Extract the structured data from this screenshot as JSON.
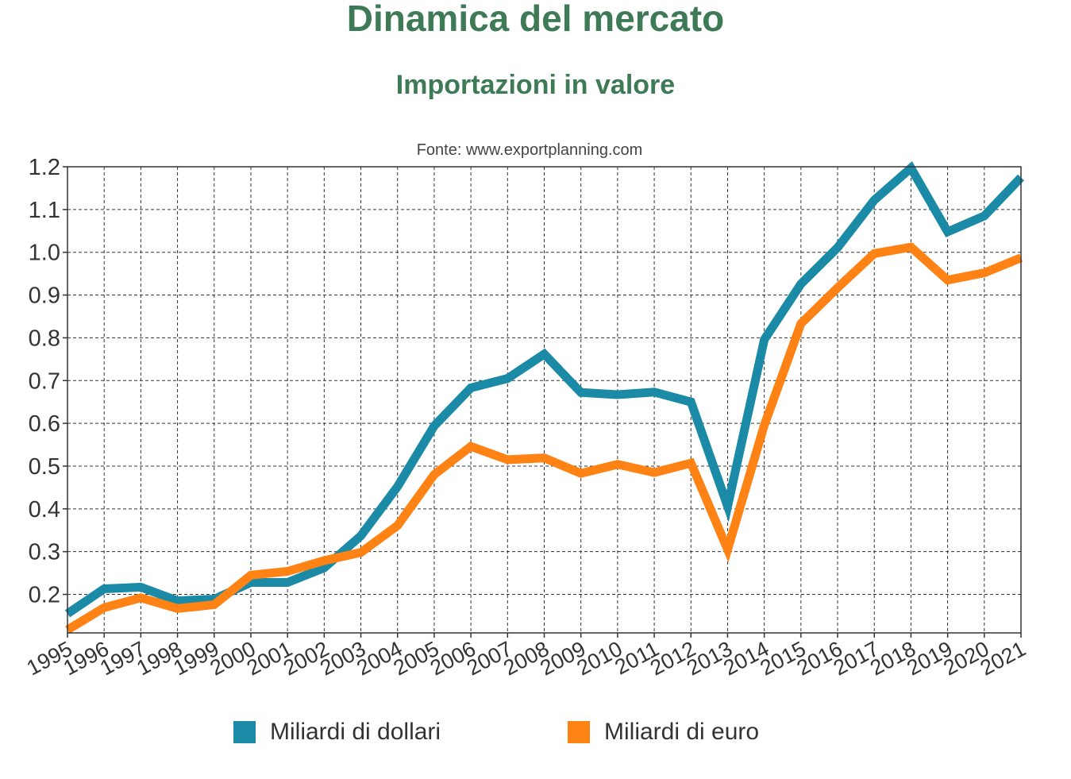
{
  "title": "Dinamica del mercato",
  "subtitle": "Importazioni in valore",
  "source": "Fonte: www.exportplanning.com",
  "colors": {
    "dollari": "#1a8aa6",
    "euro": "#ff8214",
    "title": "#3d7a55",
    "grid": "#333333",
    "axis_text": "#333333"
  },
  "chart_data": {
    "type": "line",
    "title": "Dinamica del mercato",
    "subtitle": "Importazioni in valore",
    "xlabel": "",
    "ylabel": "",
    "ylim": [
      0.11,
      1.2
    ],
    "yticks": [
      "1.2",
      "1.1",
      "1.0",
      "0.9",
      "0.8",
      "0.7",
      "0.6",
      "0.5",
      "0.4",
      "0.3",
      "0.2"
    ],
    "grid": true,
    "legend_position": "bottom",
    "categories": [
      "1995",
      "1996",
      "1997",
      "1998",
      "1999",
      "2000",
      "2001",
      "2002",
      "2003",
      "2004",
      "2005",
      "2006",
      "2007",
      "2008",
      "2009",
      "2010",
      "2011",
      "2012",
      "2013",
      "2014",
      "2015",
      "2016",
      "2017",
      "2018",
      "2019",
      "2020",
      "2021"
    ],
    "series": [
      {
        "name": "Miliardi di dollari",
        "color": "#1a8aa6",
        "values": [
          0.155,
          0.213,
          0.217,
          0.185,
          0.189,
          0.228,
          0.228,
          0.262,
          0.337,
          0.452,
          0.594,
          0.683,
          0.705,
          0.762,
          0.672,
          0.667,
          0.673,
          0.65,
          0.406,
          0.796,
          0.926,
          1.011,
          1.122,
          1.197,
          1.048,
          1.085,
          1.175
        ]
      },
      {
        "name": "Miliardi di euro",
        "color": "#ff8214",
        "values": [
          0.117,
          0.169,
          0.192,
          0.167,
          0.176,
          0.245,
          0.254,
          0.279,
          0.298,
          0.361,
          0.48,
          0.546,
          0.515,
          0.519,
          0.483,
          0.504,
          0.485,
          0.507,
          0.305,
          0.596,
          0.833,
          0.917,
          0.997,
          1.012,
          0.935,
          0.952,
          0.987
        ]
      }
    ]
  }
}
